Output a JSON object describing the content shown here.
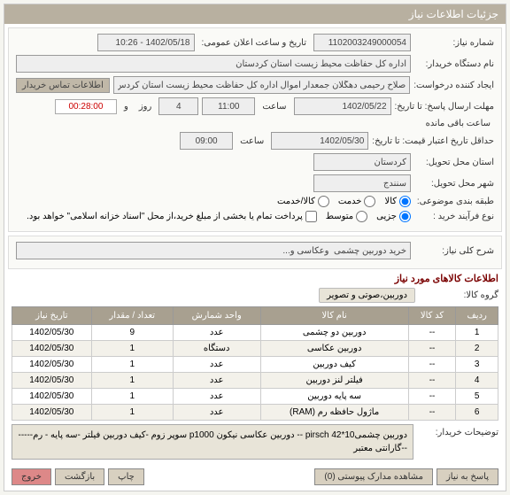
{
  "header": {
    "title": "جزئیات اطلاعات نیاز"
  },
  "form": {
    "need_no_label": "شماره نیاز:",
    "need_no": "1102003249000054",
    "announce_label": "تاریخ و ساعت اعلان عمومی:",
    "announce_value": "1402/05/18 - 10:26",
    "buyer_org_label": "نام دستگاه خریدار:",
    "buyer_org": "اداره کل حفاظت محیط زیست استان کردستان",
    "requester_label": "ایجاد کننده درخواست:",
    "requester": "صلاح رحیمی دهگلان جمعدار اموال اداره کل حفاظت محیط زیست استان کردس",
    "contact_btn": "اطلاعات تماس خریدار",
    "deadline_label": "مهلت ارسال پاسخ: تا تاریخ:",
    "deadline_date": "1402/05/22",
    "hour_label": "ساعت",
    "deadline_hour": "11:00",
    "day_label": "روز",
    "days_left": "4",
    "and_label": "و",
    "timer": "00:28:00",
    "remaining_label": "ساعت باقی مانده",
    "quote_valid_label": "حداقل تاریخ اعتبار قیمت: تا تاریخ:",
    "quote_valid_date": "1402/05/30",
    "quote_valid_hour": "09:00",
    "province_label": "استان محل تحویل:",
    "province": "کردستان",
    "city_label": "شهر محل تحویل:",
    "city": "سنندج",
    "category_label": "طبقه بندی موضوعی:",
    "cat_goods": "کالا",
    "cat_service": "خدمت",
    "cat_goods_service": "کالا/خدمت",
    "process_label": "نوع فرآیند خرید :",
    "proc_low": "جزیی",
    "proc_mid": "متوسط",
    "payment_note": "پرداخت تمام یا بخشی از مبلغ خرید،از محل \"اسناد خزانه اسلامی\" خواهد بود.",
    "summary_label": "شرح کلی نیاز:",
    "summary": "خرید دوربین چشمی  وعکاسی و...",
    "items_title": "اطلاعات کالاهای مورد نیاز",
    "group_label": "گروه کالا:",
    "group_chip": "دوربین،صوتی و تصویر",
    "buyer_notes_label": "توضیحات خریدار:",
    "buyer_notes": "دوربین چشمی10*42 pirsch  -- دوربین عکاسی نیکون p1000 سوپر زوم -کیف دوربین فیلتر -سه پایه - رم-------گارانتی معتبر"
  },
  "table": {
    "columns": [
      "ردیف",
      "کد کالا",
      "نام کالا",
      "واحد شمارش",
      "تعداد / مقدار",
      "تاریخ نیاز"
    ],
    "rows": [
      [
        "1",
        "--",
        "دوربین دو چشمی",
        "عدد",
        "9",
        "1402/05/30"
      ],
      [
        "2",
        "--",
        "دوربین عکاسی",
        "دستگاه",
        "1",
        "1402/05/30"
      ],
      [
        "3",
        "--",
        "کیف دوربین",
        "عدد",
        "1",
        "1402/05/30"
      ],
      [
        "4",
        "--",
        "فیلتر لنز دوربین",
        "عدد",
        "1",
        "1402/05/30"
      ],
      [
        "5",
        "--",
        "سه پایه دوربین",
        "عدد",
        "1",
        "1402/05/30"
      ],
      [
        "6",
        "--",
        "ماژول حافظه رم (RAM)",
        "عدد",
        "1",
        "1402/05/30"
      ]
    ]
  },
  "footer": {
    "reply": "پاسخ به نیاز",
    "attachments": "مشاهده مدارک پیوستی (0)",
    "print": "چاپ",
    "back": "بازگشت",
    "exit": "خروج"
  },
  "colors": {
    "header_bg": "#b8b0a0",
    "th_bg": "#a8a090",
    "chip_bg": "#e8e4d8",
    "accent": "#7a0000",
    "timer_color": "#c00"
  }
}
